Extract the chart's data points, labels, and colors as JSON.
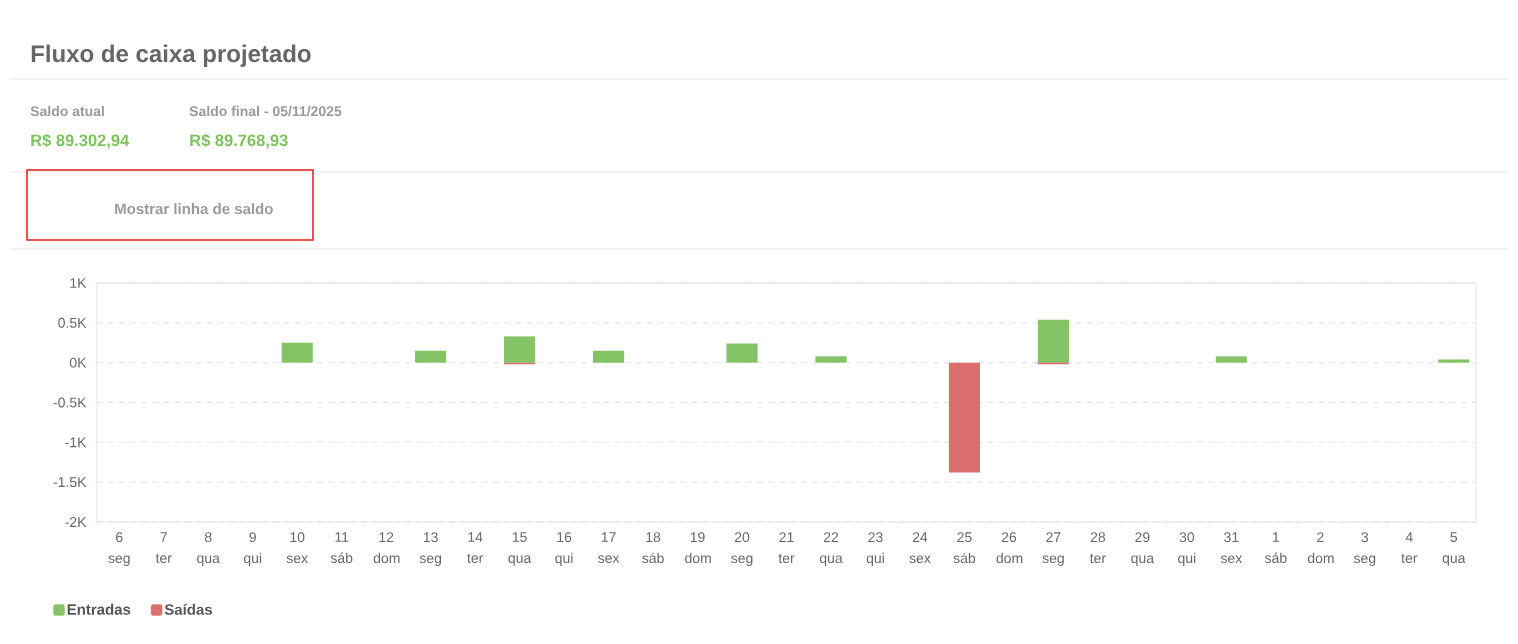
{
  "chart_data": {
    "type": "bar",
    "title": "Fluxo de caixa projetado",
    "annotations": [
      "Saldo atual",
      "Saldo final - 05/11/2025",
      "R$ 89.302,94",
      "R$ 89.768,93",
      "Mostrar linha de saldo"
    ],
    "categories": [
      "6 seg",
      "7 ter",
      "8 qua",
      "9 qui",
      "10 sex",
      "11 sáb",
      "12 dom",
      "13 seg",
      "14 ter",
      "15 qua",
      "16 qui",
      "17 sex",
      "18 sáb",
      "19 dom",
      "20 seg",
      "21 ter",
      "22 qua",
      "23 qui",
      "24 sex",
      "25 sáb",
      "26 dom",
      "27 seg",
      "28 ter",
      "29 qua",
      "30 qui",
      "31 sex",
      "1 sáb",
      "2 dom",
      "3 seg",
      "4 ter",
      "5 qua"
    ],
    "series": [
      {
        "name": "Entradas",
        "color": "#84c366",
        "values": [
          0,
          0,
          0,
          0,
          250,
          0,
          0,
          150,
          0,
          330,
          0,
          150,
          0,
          0,
          240,
          0,
          80,
          0,
          0,
          0,
          0,
          540,
          0,
          0,
          0,
          80,
          0,
          0,
          0,
          0,
          40
        ]
      },
      {
        "name": "Saídas",
        "color": "#dc6e6e",
        "values": [
          0,
          0,
          0,
          0,
          0,
          0,
          0,
          0,
          0,
          -20,
          0,
          0,
          0,
          0,
          0,
          0,
          0,
          0,
          0,
          -1380,
          0,
          -20,
          0,
          0,
          0,
          0,
          0,
          0,
          0,
          0,
          0
        ]
      }
    ],
    "stacked": true,
    "ylim": [
      -2000,
      1000
    ],
    "yticks": [
      {
        "value": -2000,
        "label": "-2K"
      },
      {
        "value": -1500,
        "label": "-1.5K"
      },
      {
        "value": -1000,
        "label": "-1K"
      },
      {
        "value": -500,
        "label": "-0.5K"
      },
      {
        "value": 0,
        "label": "0K"
      },
      {
        "value": 500,
        "label": "0.5K"
      },
      {
        "value": 1000,
        "label": "1K"
      }
    ],
    "grid": "y",
    "legend": "bottom left"
  }
}
